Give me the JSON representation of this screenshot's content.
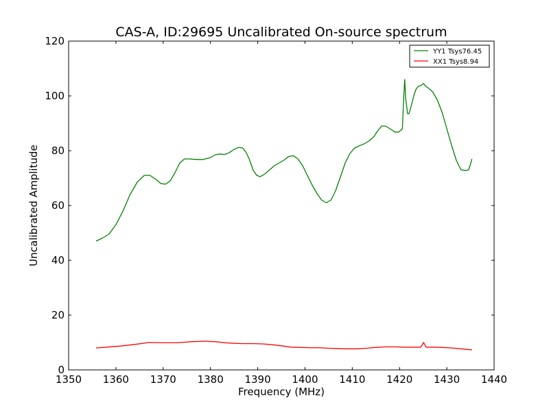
{
  "chart_data": {
    "type": "line",
    "title": "CAS-A, ID:29695 Uncalibrated On-source spectrum",
    "xlabel": "Frequency (MHz)",
    "ylabel": "Uncalibrated Amplitude",
    "xlim": [
      1350,
      1440
    ],
    "ylim": [
      0,
      120
    ],
    "xticks": [
      1350,
      1360,
      1370,
      1380,
      1390,
      1400,
      1410,
      1420,
      1430,
      1440
    ],
    "yticks": [
      0,
      20,
      40,
      60,
      80,
      100,
      120
    ],
    "xtick_labels": [
      "1350",
      "1360",
      "1370",
      "1380",
      "1390",
      "1400",
      "1410",
      "1420",
      "1430",
      "1440"
    ],
    "ytick_labels": [
      "0",
      "20",
      "40",
      "60",
      "80",
      "100",
      "120"
    ],
    "grid": false,
    "legend_position": "top-right",
    "series": [
      {
        "name": "YY1 Tsys76.45",
        "color": "#008000",
        "x": [
          1355.8,
          1357,
          1358.5,
          1360,
          1361.5,
          1363,
          1364.5,
          1366,
          1367.2,
          1368.5,
          1369.5,
          1370.5,
          1371.5,
          1372.5,
          1373.5,
          1374.5,
          1375.5,
          1377,
          1378.5,
          1380,
          1381,
          1382,
          1383,
          1384,
          1385,
          1386,
          1386.8,
          1387.5,
          1388.2,
          1389,
          1389.8,
          1390.5,
          1391.5,
          1392.5,
          1393.5,
          1394.5,
          1395.5,
          1396.5,
          1397.5,
          1398.5,
          1399.5,
          1400.5,
          1401.5,
          1402.5,
          1403.5,
          1404.5,
          1405.5,
          1406.5,
          1407.5,
          1408.5,
          1409.5,
          1410.5,
          1411.5,
          1412.5,
          1413.5,
          1414.5,
          1415.5,
          1416.2,
          1417,
          1418,
          1419,
          1419.8,
          1420.3,
          1420.6,
          1420.9,
          1421.1,
          1421.3,
          1421.7,
          1422,
          1422.5,
          1423,
          1423.5,
          1424,
          1424.5,
          1425.1,
          1425.5,
          1426,
          1427,
          1428,
          1429,
          1430,
          1431,
          1432,
          1433,
          1434,
          1434.6,
          1435,
          1435.3
        ],
        "values": [
          47.0,
          48.0,
          49.5,
          53.0,
          58.0,
          64.0,
          68.5,
          71.0,
          71.0,
          69.5,
          68.0,
          67.8,
          69.0,
          72.0,
          75.5,
          77.0,
          77.0,
          76.8,
          76.8,
          77.5,
          78.5,
          78.8,
          78.6,
          79.3,
          80.5,
          81.2,
          81.0,
          79.5,
          77.0,
          73.0,
          71.0,
          70.5,
          71.5,
          73.0,
          74.5,
          75.5,
          76.5,
          77.8,
          78.2,
          77.0,
          74.5,
          71.0,
          67.5,
          64.5,
          62.0,
          61.0,
          62.0,
          65.5,
          70.5,
          75.5,
          79.0,
          81.0,
          81.8,
          82.5,
          83.5,
          85.0,
          87.5,
          89.0,
          89.0,
          88.0,
          86.8,
          86.8,
          87.5,
          88.0,
          100.0,
          106.0,
          99.0,
          93.5,
          93.5,
          96.5,
          100.0,
          102.5,
          103.5,
          103.8,
          104.5,
          103.5,
          103.0,
          101.5,
          98.5,
          94.0,
          88.0,
          82.0,
          76.5,
          73.0,
          72.8,
          73.0,
          75.0,
          77.0
        ]
      },
      {
        "name": "XX1 Tsys8.94",
        "color": "#ff0000",
        "x": [
          1355.8,
          1358,
          1361,
          1364,
          1367,
          1370,
          1373,
          1376,
          1379,
          1381,
          1383,
          1385,
          1387,
          1389,
          1391,
          1393,
          1395,
          1397,
          1399,
          1401,
          1403,
          1405,
          1407,
          1409,
          1411,
          1413,
          1415,
          1417,
          1419,
          1421,
          1423,
          1424.5,
          1425.1,
          1425.6,
          1427,
          1429,
          1431,
          1433,
          1435.3
        ],
        "values": [
          8.0,
          8.3,
          8.7,
          9.3,
          10.0,
          9.9,
          9.9,
          10.3,
          10.5,
          10.3,
          9.9,
          9.7,
          9.6,
          9.6,
          9.5,
          9.2,
          8.8,
          8.3,
          8.2,
          8.1,
          8.1,
          7.9,
          7.8,
          7.7,
          7.7,
          7.9,
          8.2,
          8.4,
          8.4,
          8.3,
          8.3,
          8.3,
          10.0,
          8.3,
          8.3,
          8.2,
          8.0,
          7.7,
          7.3
        ]
      }
    ]
  }
}
